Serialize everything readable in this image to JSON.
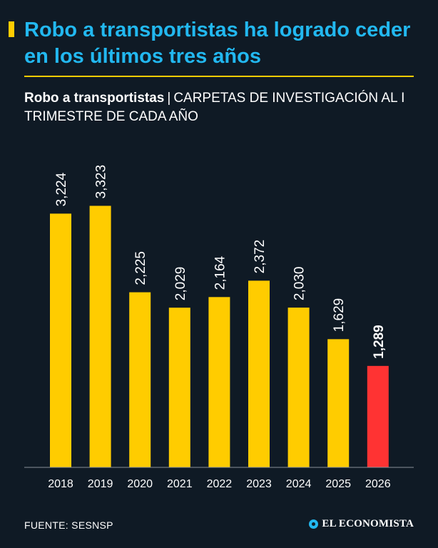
{
  "headline": "Robo a transportistas ha logrado ceder en los últimos tres años",
  "subtitle": {
    "strong": "Robo a transportistas",
    "separator": "|",
    "rest": "CARPETAS DE INVESTIGACIÓN AL I TRIMESTRE DE CADA AÑO"
  },
  "source": "FUENTE: SESNSP",
  "brand": "EL ECONOMISTA",
  "colors": {
    "background": "#0f1a25",
    "headline": "#22b8f0",
    "accent": "#ffcc00",
    "bar": "#ffcc00",
    "bar_highlight": "#ff3333"
  },
  "chart_data": {
    "type": "bar",
    "title": "Robo a transportistas",
    "subtitle": "CARPETAS DE INVESTIGACIÓN AL I TRIMESTRE DE CADA AÑO",
    "categories": [
      "2018",
      "2019",
      "2020",
      "2021",
      "2022",
      "2023",
      "2024",
      "2025",
      "2026"
    ],
    "values": [
      3224,
      3323,
      2225,
      2029,
      2164,
      2372,
      2030,
      1629,
      1289
    ],
    "value_labels": [
      "3,224",
      "3,323",
      "2,225",
      "2,029",
      "2,164",
      "2,372",
      "2,030",
      "1,629",
      "1,289"
    ],
    "highlight_index": 8,
    "xlabel": "",
    "ylabel": "",
    "ylim": [
      0,
      3400
    ],
    "grid": false
  }
}
